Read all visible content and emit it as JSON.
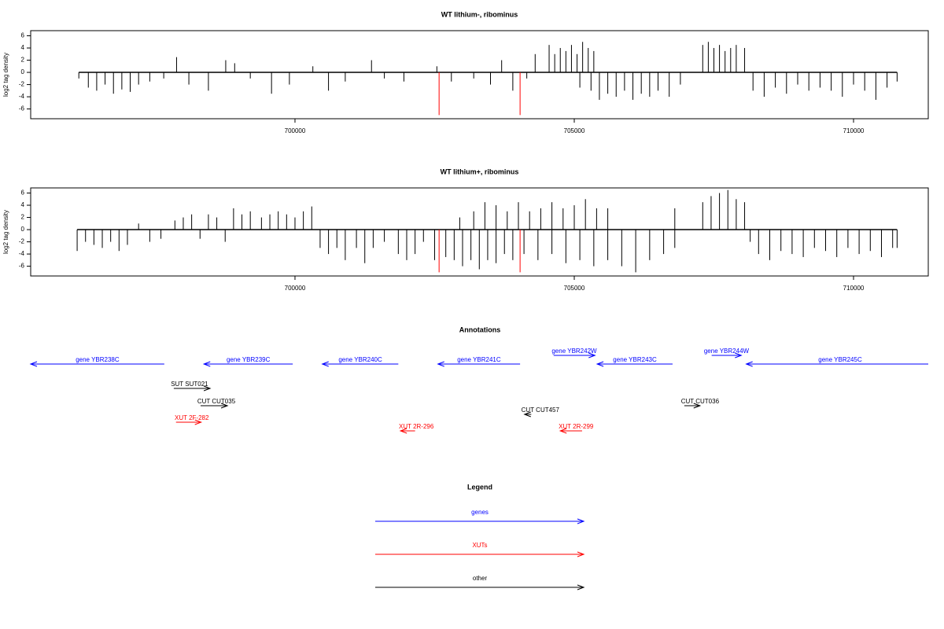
{
  "chart_data": [
    {
      "type": "spike",
      "title": "WT lithium-, ribominus",
      "ylabel": "log2 tag density",
      "color": "#000000",
      "xlim": [
        695268,
        711338
      ],
      "xticks": [
        700000,
        705000,
        710000
      ],
      "ylim": [
        -7.6,
        6.84
      ],
      "yticks": [
        -6,
        -4,
        -2,
        0,
        2,
        4,
        6
      ],
      "x": [
        696130,
        696300,
        696450,
        696600,
        696750,
        696900,
        697050,
        697200,
        697400,
        697650,
        697880,
        698100,
        698450,
        698760,
        698920,
        699200,
        699580,
        699900,
        700320,
        700600,
        700900,
        701370,
        701600,
        701950,
        702540,
        702800,
        703200,
        703500,
        703700,
        703900,
        704150,
        704300,
        704550,
        704650,
        704750,
        704850,
        704950,
        705050,
        705150,
        705250,
        705350,
        705100,
        705300,
        705450,
        705600,
        705750,
        705900,
        706050,
        706200,
        706350,
        706500,
        706700,
        706900,
        707300,
        707400,
        707500,
        707600,
        707700,
        707800,
        707900,
        708050,
        708200,
        708400,
        708600,
        708800,
        709000,
        709200,
        709400,
        709600,
        709800,
        710000,
        710200,
        710400,
        710600,
        710780
      ],
      "values": [
        -1,
        -2.5,
        -3,
        -2,
        -3.5,
        -2.8,
        -3.2,
        -2,
        -1.5,
        -1,
        2.5,
        -2,
        -3,
        2,
        1.5,
        -1,
        -3.5,
        -2,
        1,
        -3,
        -1.5,
        2,
        -1,
        -1.5,
        1,
        -1.5,
        -1,
        -2,
        2,
        -3,
        -1,
        3,
        4.5,
        3,
        4,
        3.5,
        4.5,
        3,
        5,
        4,
        3.5,
        -2.5,
        -3,
        -4.5,
        -3.5,
        -4,
        -3,
        -4.5,
        -3.5,
        -4,
        -3,
        -4,
        -2,
        4.5,
        5,
        4,
        4.5,
        3.5,
        4,
        4.5,
        4,
        -3,
        -4,
        -2.5,
        -3.5,
        -2,
        -3,
        -2.5,
        -3,
        -4,
        -2,
        -3,
        -4.5,
        -2.5,
        -1.5
      ],
      "highlight": {
        "color": "#ff0000",
        "x": [
          702580,
          704030
        ],
        "values": [
          -7,
          -7
        ]
      }
    },
    {
      "type": "spike",
      "title": "WT lithium+, ribominus",
      "ylabel": "log2 tag density",
      "color": "#000000",
      "xlim": [
        695268,
        711338
      ],
      "xticks": [
        700000,
        705000,
        710000
      ],
      "ylim": [
        -7.6,
        6.84
      ],
      "yticks": [
        -6,
        -4,
        -2,
        0,
        2,
        4,
        6
      ],
      "x": [
        696100,
        696250,
        696400,
        696550,
        696700,
        696850,
        697000,
        697200,
        697400,
        697600,
        697850,
        698000,
        698150,
        698300,
        698450,
        698600,
        698750,
        698900,
        699050,
        699200,
        699400,
        699550,
        699700,
        699850,
        700000,
        700150,
        700300,
        700450,
        700600,
        700750,
        700900,
        701100,
        701250,
        701400,
        701600,
        701850,
        702000,
        702150,
        702300,
        702500,
        702700,
        702850,
        703000,
        703150,
        703300,
        703450,
        703600,
        703750,
        703900,
        704100,
        702950,
        703200,
        703400,
        703600,
        703800,
        704000,
        704200,
        704400,
        704600,
        704800,
        705000,
        705200,
        705400,
        705600,
        704350,
        704600,
        704850,
        705100,
        705350,
        705600,
        705850,
        706100,
        706350,
        706600,
        706800,
        706800,
        707300,
        707450,
        707600,
        707750,
        707900,
        708050,
        708150,
        708300,
        708500,
        708700,
        708900,
        709100,
        709300,
        709500,
        709700,
        709900,
        710100,
        710300,
        710500,
        710700,
        710780
      ],
      "values": [
        -3.5,
        -2,
        -2.5,
        -3,
        -2,
        -3.5,
        -2.5,
        1,
        -2,
        -1.5,
        1.5,
        2,
        2.5,
        -1.5,
        2.5,
        2,
        -2,
        3.5,
        2.5,
        3,
        2,
        2.5,
        3,
        2.5,
        2,
        3,
        3.8,
        -3,
        -4,
        -3,
        -5,
        -3,
        -5.5,
        -3,
        -2,
        -4,
        -5,
        -4,
        -2,
        -5,
        -4.5,
        -5,
        -6,
        -5,
        -6.5,
        -5,
        -5.5,
        -4,
        -5,
        -4,
        2,
        3,
        4.5,
        4,
        3,
        4.5,
        3,
        3.5,
        4.5,
        3.5,
        4,
        5,
        3.5,
        3.5,
        -5,
        -4,
        -5.5,
        -5,
        -6,
        -5,
        -6,
        -7,
        -5,
        -4,
        -3,
        3.5,
        4.5,
        5.5,
        6,
        6.5,
        5,
        4.5,
        -2,
        -4,
        -5,
        -3.5,
        -4,
        -4.5,
        -3,
        -3.5,
        -4.5,
        -3,
        -4,
        -3.5,
        -4.5,
        -3,
        -3
      ],
      "highlight": {
        "color": "#ff0000",
        "x": [
          702580,
          704030
        ],
        "values": [
          -7,
          -7
        ]
      }
    }
  ],
  "annotations": {
    "title": "Annotations",
    "features": [
      {
        "label": "gene YBR238C",
        "color": "#0000ff",
        "from": 697660,
        "to": 695268
      },
      {
        "label": "gene YBR239C",
        "color": "#0000ff",
        "from": 699960,
        "to": 698370
      },
      {
        "label": "gene YBR240C",
        "color": "#0000ff",
        "from": 701850,
        "to": 700490
      },
      {
        "label": "gene YBR241C",
        "color": "#0000ff",
        "from": 704030,
        "to": 702560
      },
      {
        "label": "gene YBR242W",
        "color": "#0000ff",
        "from": 704630,
        "to": 705370
      },
      {
        "label": "gene YBR243C",
        "color": "#0000ff",
        "from": 706760,
        "to": 705410
      },
      {
        "label": "gene YBR244W",
        "color": "#0000ff",
        "from": 707460,
        "to": 707990
      },
      {
        "label": "gene YBR245C",
        "color": "#0000ff",
        "from": 711338,
        "to": 708080
      },
      {
        "label": "SUT SUT021",
        "color": "#000000",
        "from": 697830,
        "to": 698480
      },
      {
        "label": "CUT CUT035",
        "color": "#000000",
        "from": 698310,
        "to": 698790
      },
      {
        "label": "XUT 2F-282",
        "color": "#ff0000",
        "from": 697870,
        "to": 698320
      },
      {
        "label": "XUT 2R-296",
        "color": "#ff0000",
        "from": 702150,
        "to": 701890
      },
      {
        "label": "CUT CUT457",
        "color": "#000000",
        "from": 704230,
        "to": 704110
      },
      {
        "label": "XUT 2R-299",
        "color": "#ff0000",
        "from": 705140,
        "to": 704750
      },
      {
        "label": "CUT CUT036",
        "color": "#000000",
        "from": 706970,
        "to": 707250
      }
    ]
  },
  "legend": {
    "title": "Legend",
    "items": [
      {
        "label": "genes",
        "color": "#0000ff"
      },
      {
        "label": "XUTs",
        "color": "#ff0000"
      },
      {
        "label": "other",
        "color": "#000000"
      }
    ]
  }
}
